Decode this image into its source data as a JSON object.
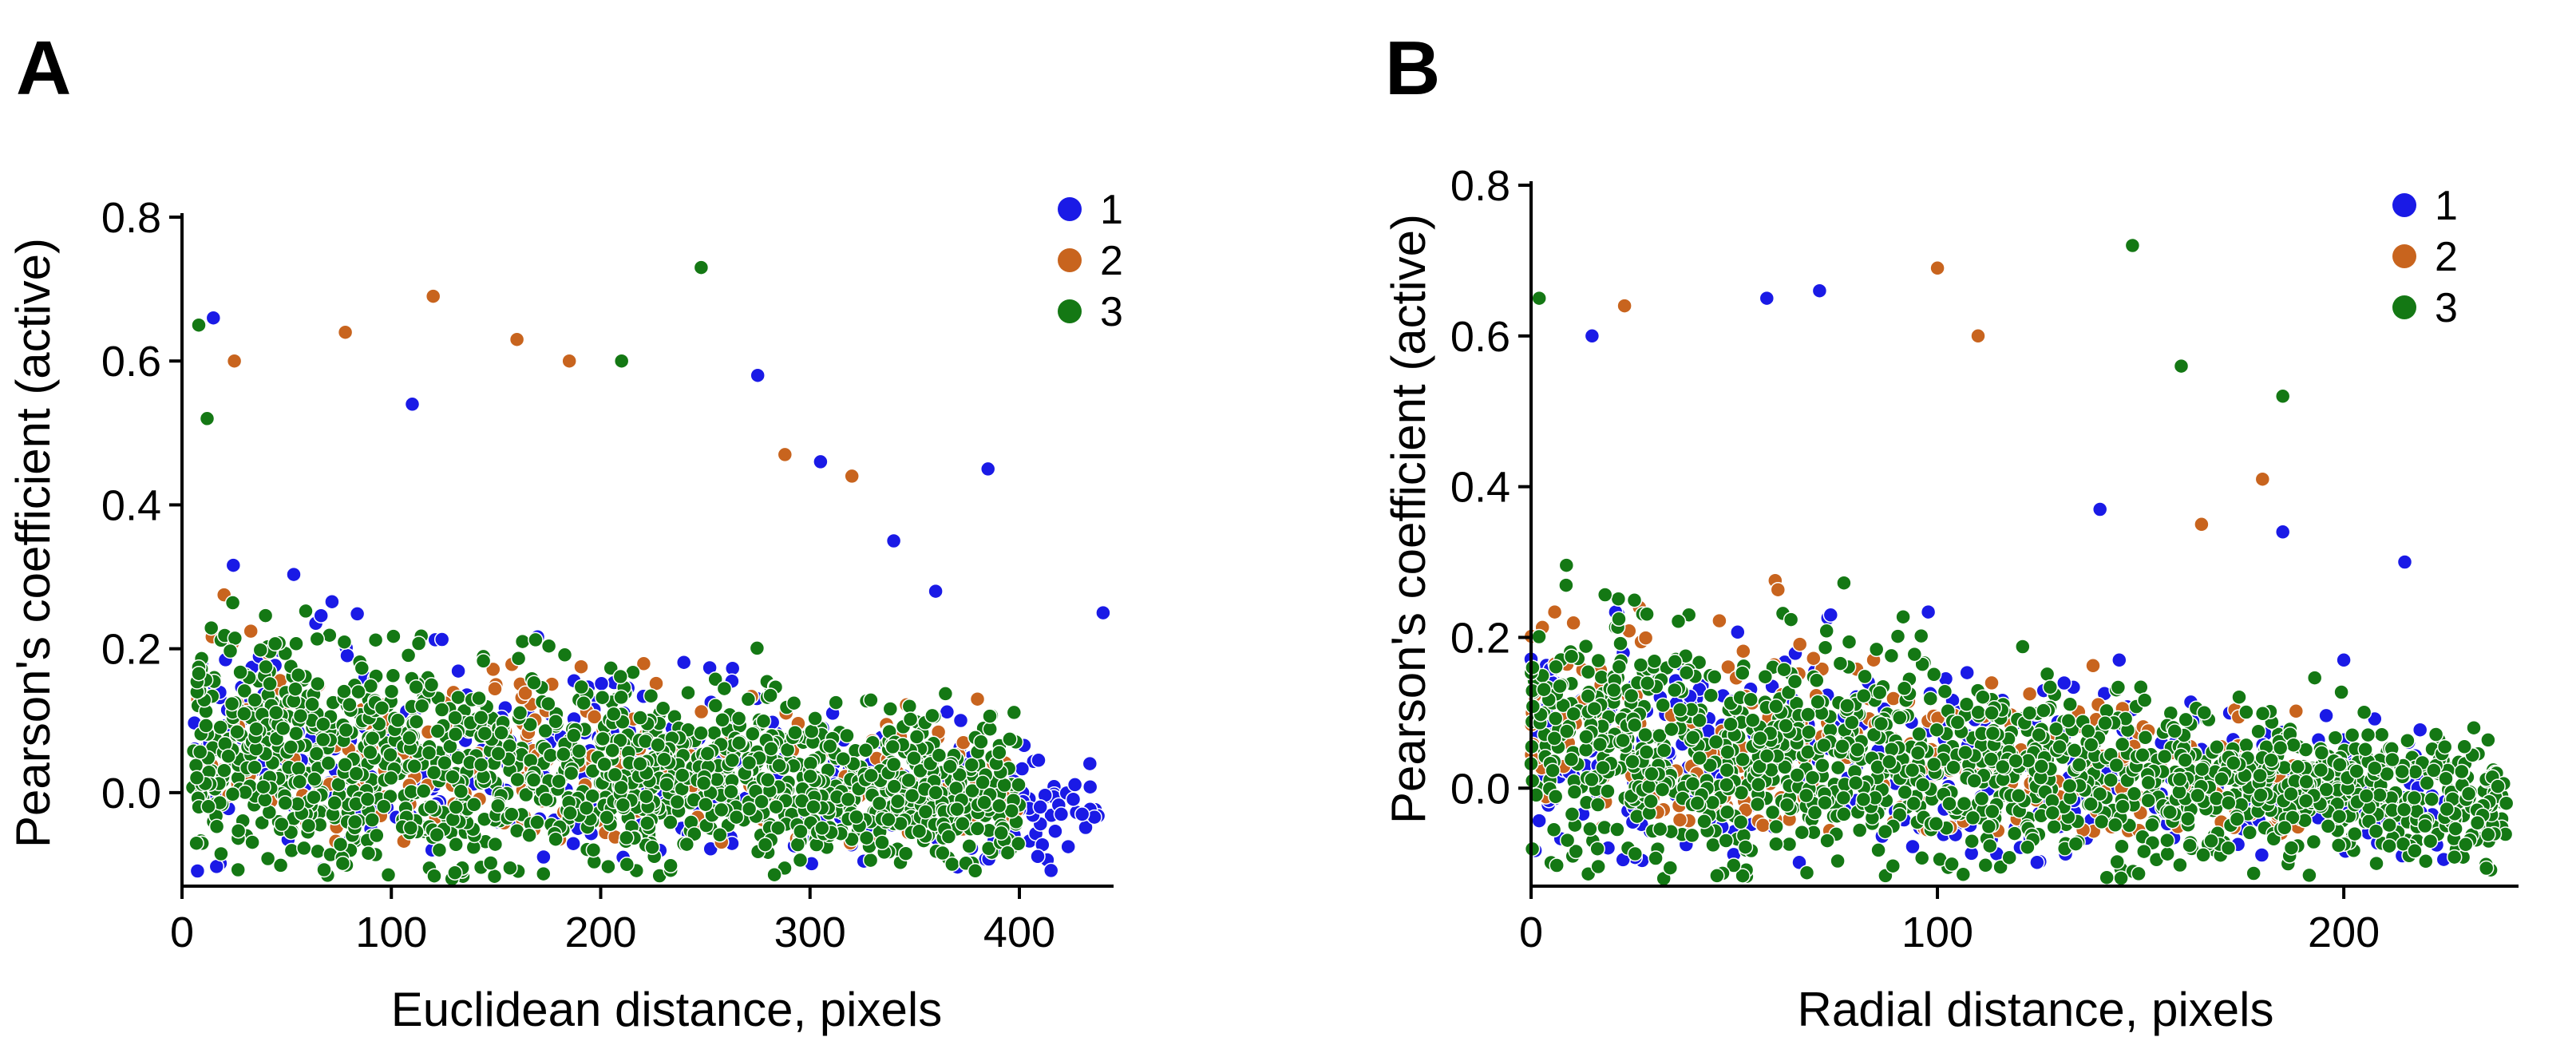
{
  "chart_data": [
    {
      "panel": "A",
      "type": "scatter",
      "xlabel": "Euclidean distance, pixels",
      "ylabel": "Pearson's coefficient (active)",
      "xlim": [
        0,
        445
      ],
      "ylim": [
        -0.13,
        0.8
      ],
      "xticks": [
        0,
        100,
        200,
        300,
        400
      ],
      "yticks": [
        0.0,
        0.2,
        0.4,
        0.6,
        0.8
      ],
      "ytick_labels": [
        "0.0",
        "0.2",
        "0.4",
        "0.6",
        "0.8"
      ],
      "grid": false,
      "legend_position": "top-right",
      "series": [
        {
          "name": "1",
          "color": "#1a1ae6",
          "x_range": [
            5,
            440
          ],
          "y_floor": -0.11,
          "points": [
            [
              440,
              0.25
            ],
            [
              385,
              0.45
            ],
            [
              430,
              -0.03
            ],
            [
              420,
              -0.03
            ],
            [
              410,
              -0.02
            ],
            [
              360,
              0.28
            ],
            [
              15,
              0.66
            ],
            [
              275,
              0.58
            ],
            [
              340,
              0.35
            ],
            [
              305,
              0.46
            ],
            [
              110,
              0.54
            ]
          ]
        },
        {
          "name": "2",
          "color": "#c8641e",
          "x_range": [
            5,
            400
          ],
          "y_floor": -0.07,
          "points": [
            [
              120,
              0.69
            ],
            [
              78,
              0.64
            ],
            [
              160,
              0.63
            ],
            [
              25,
              0.6
            ],
            [
              185,
              0.6
            ],
            [
              288,
              0.47
            ],
            [
              320,
              0.44
            ],
            [
              380,
              0.13
            ],
            [
              395,
              -0.04
            ]
          ]
        },
        {
          "name": "3",
          "color": "#147814",
          "x_range": [
            5,
            400
          ],
          "y_floor": -0.12,
          "points": [
            [
              248,
              0.73
            ],
            [
              210,
              0.6
            ],
            [
              8,
              0.65
            ],
            [
              12,
              0.52
            ],
            [
              380,
              -0.05
            ],
            [
              360,
              0.0
            ]
          ]
        }
      ]
    },
    {
      "panel": "B",
      "type": "scatter",
      "xlabel": "Radial distance, pixels",
      "ylabel": "Pearson's coefficient (active)",
      "xlim": [
        0,
        243
      ],
      "ylim": [
        -0.13,
        0.8
      ],
      "xticks": [
        0,
        100,
        200
      ],
      "yticks": [
        0.0,
        0.2,
        0.4,
        0.6,
        0.8
      ],
      "ytick_labels": [
        "0.0",
        "0.2",
        "0.4",
        "0.6",
        "0.8"
      ],
      "grid": false,
      "legend_position": "top-right",
      "series": [
        {
          "name": "1",
          "color": "#1a1ae6",
          "x_range": [
            0,
            225
          ],
          "y_floor": -0.11,
          "points": [
            [
              71,
              0.66
            ],
            [
              58,
              0.65
            ],
            [
              215,
              0.3
            ],
            [
              140,
              0.37
            ],
            [
              185,
              0.34
            ],
            [
              200,
              0.17
            ],
            [
              15,
              0.6
            ]
          ]
        },
        {
          "name": "2",
          "color": "#c8641e",
          "x_range": [
            0,
            190
          ],
          "y_floor": -0.06,
          "points": [
            [
              100,
              0.69
            ],
            [
              23,
              0.64
            ],
            [
              110,
              0.6
            ],
            [
              180,
              0.41
            ],
            [
              165,
              0.35
            ],
            [
              190,
              0.02
            ]
          ]
        },
        {
          "name": "3",
          "color": "#147814",
          "x_range": [
            0,
            240
          ],
          "y_floor": -0.12,
          "points": [
            [
              148,
              0.72
            ],
            [
              2,
              0.65
            ],
            [
              185,
              0.52
            ],
            [
              240,
              -0.02
            ],
            [
              232,
              0.08
            ],
            [
              220,
              -0.05
            ],
            [
              160,
              0.56
            ]
          ]
        }
      ]
    }
  ]
}
